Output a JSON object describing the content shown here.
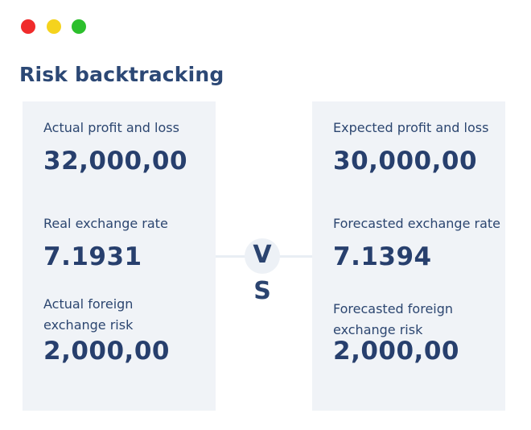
{
  "window_controls": {
    "red": "#f02b2b",
    "yellow": "#f5d31d",
    "green": "#2cbf2c"
  },
  "title": "Risk backtracking",
  "left_card": {
    "pnl_label": "Actual profit and loss",
    "pnl_value": "32,000,00",
    "rate_label": "Real exchange rate",
    "rate_value": "7.1931",
    "risk_label": "Actual foreign exchange risk",
    "risk_value": "2,000,00"
  },
  "vs": {
    "v": "V",
    "s": "S"
  },
  "right_card": {
    "pnl_label": "Expected profit and loss",
    "pnl_value": "30,000,00",
    "rate_label": "Forecasted exchange rate",
    "rate_value": "7.1394",
    "risk_label": "Forecasted foreign exchange risk",
    "risk_value": "2,000,00"
  }
}
